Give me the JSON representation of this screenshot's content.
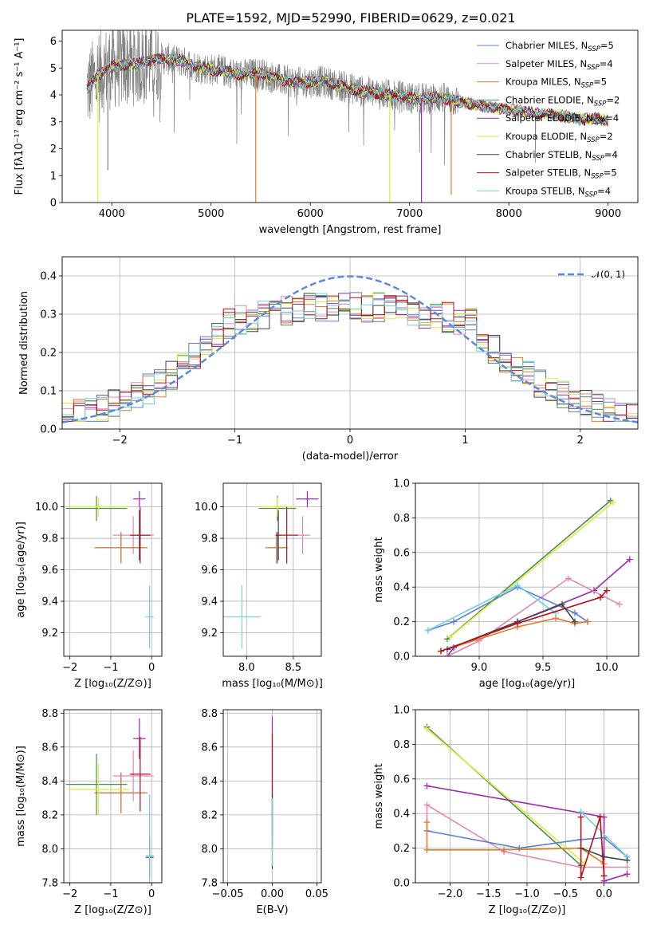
{
  "figure": {
    "title": "PLATE=1592, MJD=52990, FIBERID=0629, z=0.021"
  },
  "colors": {
    "chabrier_miles": "#5b7fd6",
    "salpeter_miles": "#e585b4",
    "kroupa_miles": "#e07b2a",
    "chabrier_elodie": "#4a8c52",
    "salpeter_elodie": "#9a2ab0",
    "kroupa_elodie": "#d8ee3a",
    "chabrier_stelib": "#444444",
    "salpeter_stelib": "#b3101a",
    "kroupa_stelib": "#6fd2dc",
    "data": "#808080",
    "normal": "#5b8bd6"
  },
  "chart_data": [
    {
      "id": "spectrum",
      "type": "line",
      "title": "PLATE=1592, MJD=52990, FIBERID=0629, z=0.021",
      "xlabel": "wavelength [Angstrom, rest frame]",
      "ylabel": "Flux [fλ10⁻¹⁷ erg cm⁻² s⁻¹ A⁻¹]",
      "xlim": [
        3500,
        9300
      ],
      "ylim": [
        0,
        6.4
      ],
      "xticks": [
        4000,
        5000,
        6000,
        7000,
        8000,
        9000
      ],
      "yticks": [
        0,
        1,
        2,
        3,
        4,
        5,
        6
      ],
      "legend_position": "top-right",
      "legend": [
        {
          "label": "Chabrier MILES, N",
          "sub": "SSP",
          "tail": "=5",
          "color": "#5b7fd6"
        },
        {
          "label": "Salpeter MILES, N",
          "sub": "SSP",
          "tail": "=4",
          "color": "#e585b4"
        },
        {
          "label": "Kroupa MILES, N",
          "sub": "SSP",
          "tail": "=5",
          "color": "#e07b2a"
        },
        {
          "label": "Chabrier ELODIE, N",
          "sub": "SSP",
          "tail": "=2",
          "color": "#4a8c52"
        },
        {
          "label": "Salpeter ELODIE, N",
          "sub": "SSP",
          "tail": "=4",
          "color": "#9a2ab0"
        },
        {
          "label": "Kroupa ELODIE, N",
          "sub": "SSP",
          "tail": "=2",
          "color": "#d8ee3a"
        },
        {
          "label": "Chabrier STELIB, N",
          "sub": "SSP",
          "tail": "=4",
          "color": "#444444"
        },
        {
          "label": "Salpeter STELIB, N",
          "sub": "SSP",
          "tail": "=5",
          "color": "#b3101a"
        },
        {
          "label": "Kroupa STELIB, N",
          "sub": "SSP",
          "tail": "=4",
          "color": "#6fd2dc"
        }
      ],
      "continuum": [
        [
          3750,
          4.2
        ],
        [
          3850,
          4.7
        ],
        [
          3950,
          5.0
        ],
        [
          4100,
          5.1
        ],
        [
          4300,
          5.2
        ],
        [
          4500,
          5.35
        ],
        [
          4700,
          5.25
        ],
        [
          4900,
          5.0
        ],
        [
          5100,
          4.9
        ],
        [
          5300,
          4.75
        ],
        [
          5500,
          4.8
        ],
        [
          5700,
          4.55
        ],
        [
          5900,
          4.45
        ],
        [
          6100,
          4.5
        ],
        [
          6300,
          4.35
        ],
        [
          6500,
          4.15
        ],
        [
          6700,
          4.05
        ],
        [
          6900,
          3.95
        ],
        [
          7100,
          3.85
        ],
        [
          7300,
          3.9
        ],
        [
          7500,
          3.75
        ],
        [
          7700,
          3.6
        ],
        [
          7900,
          3.5
        ],
        [
          8100,
          3.4
        ],
        [
          8300,
          3.3
        ],
        [
          8500,
          3.25
        ],
        [
          8700,
          3.1
        ],
        [
          8900,
          3.1
        ],
        [
          9000,
          3.05
        ]
      ],
      "spikes": [
        {
          "x": 5450,
          "y": 0,
          "color": "#e07b2a"
        },
        {
          "x": 6800,
          "y": 0,
          "color": "#d8ee3a"
        },
        {
          "x": 7120,
          "y": 0,
          "color": "#9a2ab0"
        },
        {
          "x": 7420,
          "y": 0.3,
          "color": "#e07b2a"
        },
        {
          "x": 3860,
          "y": 0,
          "color": "#d8ee3a"
        },
        {
          "x": 3960,
          "y": 1.2,
          "color": "#808080"
        }
      ]
    },
    {
      "id": "residuals",
      "type": "bar",
      "xlabel": "(data-model)/error",
      "ylabel": "Normed distribution",
      "xlim": [
        -2.5,
        2.5
      ],
      "ylim": [
        0,
        0.45
      ],
      "xticks": [
        -2,
        -1,
        0,
        1,
        2
      ],
      "yticks": [
        0.0,
        0.1,
        0.2,
        0.3,
        0.4
      ],
      "legend": [
        {
          "label": "𝒩(0, 1)",
          "color": "#5b8bd6"
        }
      ],
      "legend_position": "top-right",
      "bin_width": 0.1
    },
    {
      "id": "age_vs_Z",
      "type": "scatter",
      "xlabel": "Z [log₁₀(Z/Z⊙)]",
      "ylabel": "age  [log₁₀(age/yr)]",
      "xlim": [
        -2.15,
        0.25
      ],
      "ylim": [
        9.05,
        10.15
      ],
      "xticks": [
        -2,
        -1,
        0
      ],
      "yticks": [
        9.2,
        9.4,
        9.6,
        9.8,
        10.0
      ],
      "points": [
        {
          "x": -0.75,
          "y": 9.74,
          "xerr": 0.6,
          "yerr": 0.1,
          "color": "#5b7fd6"
        },
        {
          "x": -0.45,
          "y": 9.82,
          "xerr": 0.5,
          "yerr": 0.12,
          "color": "#e585b4"
        },
        {
          "x": -0.75,
          "y": 9.74,
          "xerr": 0.65,
          "yerr": 0.1,
          "color": "#e07b2a"
        },
        {
          "x": -1.35,
          "y": 9.99,
          "xerr": 0.75,
          "yerr": 0.08,
          "color": "#4a8c52"
        },
        {
          "x": -0.3,
          "y": 10.05,
          "xerr": 0.15,
          "yerr": 0.05,
          "color": "#9a2ab0"
        },
        {
          "x": -1.3,
          "y": 10.0,
          "xerr": 0.75,
          "yerr": 0.06,
          "color": "#d8ee3a"
        },
        {
          "x": -0.3,
          "y": 9.82,
          "xerr": 0.05,
          "yerr": 0.16,
          "color": "#444444"
        },
        {
          "x": -0.28,
          "y": 9.82,
          "xerr": 0.25,
          "yerr": 0.18,
          "color": "#b3101a"
        },
        {
          "x": -0.05,
          "y": 9.3,
          "xerr": 0.1,
          "yerr": 0.2,
          "color": "#6fd2dc"
        }
      ]
    },
    {
      "id": "age_vs_mass",
      "type": "scatter",
      "xlabel": "mass [log₁₀(M/M⊙)]",
      "ylabel": "",
      "xlim": [
        7.75,
        8.8
      ],
      "ylim": [
        9.05,
        10.15
      ],
      "xticks": [
        8.0,
        8.5
      ],
      "yticks": [
        9.2,
        9.4,
        9.6,
        9.8,
        10.0
      ],
      "points": [
        {
          "x": 8.33,
          "y": 9.74,
          "xerr": 0.1,
          "yerr": 0.1,
          "color": "#5b7fd6"
        },
        {
          "x": 8.6,
          "y": 9.82,
          "xerr": 0.08,
          "yerr": 0.12,
          "color": "#e585b4"
        },
        {
          "x": 8.32,
          "y": 9.74,
          "xerr": 0.12,
          "yerr": 0.1,
          "color": "#e07b2a"
        },
        {
          "x": 8.33,
          "y": 9.99,
          "xerr": 0.2,
          "yerr": 0.08,
          "color": "#4a8c52"
        },
        {
          "x": 8.65,
          "y": 10.05,
          "xerr": 0.12,
          "yerr": 0.05,
          "color": "#9a2ab0"
        },
        {
          "x": 8.33,
          "y": 10.0,
          "xerr": 0.2,
          "yerr": 0.06,
          "color": "#d8ee3a"
        },
        {
          "x": 8.34,
          "y": 9.82,
          "xerr": 0.03,
          "yerr": 0.16,
          "color": "#444444"
        },
        {
          "x": 8.43,
          "y": 9.82,
          "xerr": 0.12,
          "yerr": 0.18,
          "color": "#b3101a"
        },
        {
          "x": 7.95,
          "y": 9.3,
          "xerr": 0.2,
          "yerr": 0.2,
          "color": "#6fd2dc"
        }
      ]
    },
    {
      "id": "weight_vs_age",
      "type": "line",
      "xlabel": "age  [log₁₀(age/yr)]",
      "ylabel": "mass weight",
      "xlim": [
        8.5,
        10.25
      ],
      "ylim": [
        0,
        1.0
      ],
      "xticks": [
        9.0,
        9.5,
        10.0
      ],
      "yticks": [
        0.0,
        0.2,
        0.4,
        0.6,
        0.8,
        1.0
      ],
      "series": [
        {
          "color": "#4a8c52",
          "x": [
            8.75,
            10.03
          ],
          "y": [
            0.1,
            0.9
          ]
        },
        {
          "color": "#d8ee3a",
          "x": [
            8.77,
            10.05
          ],
          "y": [
            0.11,
            0.89
          ]
        },
        {
          "color": "#9a2ab0",
          "x": [
            8.75,
            8.8,
            9.3,
            9.9,
            10.18
          ],
          "y": [
            0.0,
            0.05,
            0.2,
            0.38,
            0.56
          ]
        },
        {
          "color": "#e585b4",
          "x": [
            8.75,
            9.0,
            9.7,
            10.1
          ],
          "y": [
            0.0,
            0.09,
            0.45,
            0.3
          ]
        },
        {
          "color": "#5b7fd6",
          "x": [
            8.6,
            8.8,
            9.3,
            9.75,
            9.85
          ],
          "y": [
            0.15,
            0.2,
            0.4,
            0.25,
            0.2
          ]
        },
        {
          "color": "#6fd2dc",
          "x": [
            8.6,
            9.3,
            9.6
          ],
          "y": [
            0.15,
            0.41,
            0.25
          ]
        },
        {
          "color": "#e07b2a",
          "x": [
            8.7,
            9.3,
            9.6,
            9.75,
            9.85
          ],
          "y": [
            0.03,
            0.17,
            0.22,
            0.19,
            0.2
          ]
        },
        {
          "color": "#444444",
          "x": [
            8.75,
            9.3,
            9.65,
            9.75
          ],
          "y": [
            0.04,
            0.2,
            0.3,
            0.2
          ]
        },
        {
          "color": "#b3101a",
          "x": [
            8.7,
            9.3,
            9.95,
            10.0
          ],
          "y": [
            0.03,
            0.19,
            0.34,
            0.38
          ]
        }
      ]
    },
    {
      "id": "mass_vs_Z",
      "type": "scatter",
      "xlabel": "Z [log₁₀(Z/Z⊙)]",
      "ylabel": "mass [log₁₀(M/M⊙)]",
      "xlim": [
        -2.15,
        0.25
      ],
      "ylim": [
        7.8,
        8.82
      ],
      "xticks": [
        -2,
        -1,
        0
      ],
      "yticks": [
        7.8,
        8.0,
        8.2,
        8.4,
        8.6,
        8.8
      ],
      "points": [
        {
          "x": -0.75,
          "y": 8.33,
          "xerr": 0.6,
          "yerr": 0.12,
          "color": "#5b7fd6"
        },
        {
          "x": -0.45,
          "y": 8.43,
          "xerr": 0.5,
          "yerr": 0.15,
          "color": "#e585b4"
        },
        {
          "x": -0.75,
          "y": 8.33,
          "xerr": 0.65,
          "yerr": 0.12,
          "color": "#e07b2a"
        },
        {
          "x": -1.35,
          "y": 8.38,
          "xerr": 0.75,
          "yerr": 0.18,
          "color": "#4a8c52"
        },
        {
          "x": -0.3,
          "y": 8.65,
          "xerr": 0.15,
          "yerr": 0.12,
          "color": "#9a2ab0"
        },
        {
          "x": -1.3,
          "y": 8.35,
          "xerr": 0.75,
          "yerr": 0.15,
          "color": "#d8ee3a"
        },
        {
          "x": -0.05,
          "y": 7.95,
          "xerr": 0.1,
          "yerr": 0.12,
          "color": "#444444"
        },
        {
          "x": -0.28,
          "y": 8.44,
          "xerr": 0.25,
          "yerr": 0.22,
          "color": "#b3101a"
        },
        {
          "x": -0.05,
          "y": 7.96,
          "xerr": 0.1,
          "yerr": 0.36,
          "color": "#6fd2dc"
        }
      ]
    },
    {
      "id": "mass_vs_EBV",
      "type": "scatter",
      "xlabel": "E(B-V)",
      "ylabel": "",
      "xlim": [
        -0.055,
        0.055
      ],
      "ylim": [
        7.8,
        8.82
      ],
      "xticks": [
        -0.05,
        0.0,
        0.05
      ],
      "xtick_labels": [
        "−0.05",
        "0.00",
        "0.05"
      ],
      "yticks": [
        7.8,
        8.0,
        8.2,
        8.4,
        8.6,
        8.8
      ],
      "points": [
        {
          "x": 0,
          "y": 8.4,
          "yerr": 0.38,
          "color": "#9a2ab0"
        },
        {
          "x": 0,
          "y": 8.38,
          "yerr": 0.3,
          "color": "#b3101a"
        },
        {
          "x": 0,
          "y": 8.1,
          "yerr": 0.22,
          "color": "#444444"
        },
        {
          "x": 0,
          "y": 8.1,
          "yerr": 0.2,
          "color": "#6fd2dc"
        }
      ]
    },
    {
      "id": "weight_vs_Z",
      "type": "line",
      "xlabel": "Z [log₁₀(Z/Z⊙)]",
      "ylabel": "mass weight",
      "xlim": [
        -2.45,
        0.45
      ],
      "ylim": [
        0,
        1.0
      ],
      "xticks": [
        -2.0,
        -1.5,
        -1.0,
        -0.5,
        0.0
      ],
      "xtick_labels": [
        "−2.0",
        "−1.5",
        "−1.0",
        "−0.5",
        "0.0"
      ],
      "yticks": [
        0.0,
        0.2,
        0.4,
        0.6,
        0.8,
        1.0
      ],
      "series": [
        {
          "color": "#4a8c52",
          "x": [
            -2.3,
            -0.3
          ],
          "y": [
            0.9,
            0.1
          ]
        },
        {
          "color": "#d8ee3a",
          "x": [
            -2.3,
            -0.25
          ],
          "y": [
            0.89,
            0.11
          ]
        },
        {
          "color": "#9a2ab0",
          "x": [
            -2.3,
            0.0,
            0.0,
            0.3,
            0.3
          ],
          "y": [
            0.56,
            0.38,
            0.01,
            0.05,
            0.05
          ]
        },
        {
          "color": "#e585b4",
          "x": [
            -2.3,
            -2.3,
            -1.3,
            -0.3,
            0.3
          ],
          "y": [
            0.3,
            0.45,
            0.18,
            0.09,
            0.09
          ]
        },
        {
          "color": "#5b7fd6",
          "x": [
            -2.3,
            -1.1,
            -0.3,
            0.0,
            0.3
          ],
          "y": [
            0.3,
            0.2,
            0.25,
            0.26,
            0.15
          ]
        },
        {
          "color": "#6fd2dc",
          "x": [
            -0.3,
            0.3
          ],
          "y": [
            0.41,
            0.15
          ]
        },
        {
          "color": "#e07b2a",
          "x": [
            -2.3,
            -2.3,
            -1.3,
            -0.3,
            0.0
          ],
          "y": [
            0.35,
            0.19,
            0.19,
            0.2,
            0.11
          ]
        },
        {
          "color": "#444444",
          "x": [
            -0.3,
            0.0,
            0.3
          ],
          "y": [
            0.2,
            0.15,
            0.13
          ]
        },
        {
          "color": "#b3101a",
          "x": [
            -0.3,
            -0.3,
            -0.05,
            0.0
          ],
          "y": [
            0.38,
            0.03,
            0.38,
            0.04
          ]
        }
      ]
    }
  ]
}
